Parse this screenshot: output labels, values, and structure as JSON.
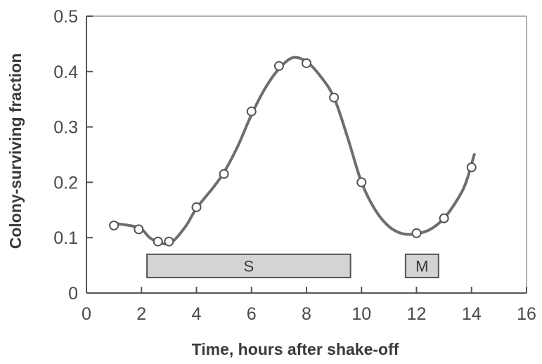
{
  "chart_data": {
    "type": "scatter",
    "title": "",
    "xlabel": "Time, hours after shake-off",
    "ylabel": "Colony-surviving fraction",
    "xlim": [
      0,
      16
    ],
    "ylim": [
      0,
      0.5
    ],
    "xticks": [
      0,
      2,
      4,
      6,
      8,
      10,
      12,
      14,
      16
    ],
    "yticks": [
      0,
      0.1,
      0.2,
      0.3,
      0.4,
      0.5
    ],
    "xtick_labels": [
      "0",
      "2",
      "4",
      "6",
      "8",
      "10",
      "12",
      "14",
      "16"
    ],
    "ytick_labels": [
      "0",
      "0.1",
      "0.2",
      "0.3",
      "0.4",
      "0.5"
    ],
    "grid": false,
    "points": [
      {
        "x": 1.0,
        "y": 0.122
      },
      {
        "x": 1.9,
        "y": 0.115
      },
      {
        "x": 2.6,
        "y": 0.093
      },
      {
        "x": 3.0,
        "y": 0.093
      },
      {
        "x": 4.0,
        "y": 0.155
      },
      {
        "x": 5.0,
        "y": 0.215
      },
      {
        "x": 6.0,
        "y": 0.328
      },
      {
        "x": 7.0,
        "y": 0.41
      },
      {
        "x": 8.0,
        "y": 0.415
      },
      {
        "x": 9.0,
        "y": 0.353
      },
      {
        "x": 10.0,
        "y": 0.2
      },
      {
        "x": 12.0,
        "y": 0.108
      },
      {
        "x": 13.0,
        "y": 0.135
      },
      {
        "x": 14.0,
        "y": 0.227
      }
    ],
    "fit_curve": [
      [
        1.0,
        0.126
      ],
      [
        1.9,
        0.118
      ],
      [
        2.3,
        0.1
      ],
      [
        2.7,
        0.09
      ],
      [
        3.1,
        0.092
      ],
      [
        3.6,
        0.12
      ],
      [
        4.0,
        0.153
      ],
      [
        4.6,
        0.19
      ],
      [
        5.0,
        0.218
      ],
      [
        5.5,
        0.265
      ],
      [
        6.0,
        0.322
      ],
      [
        6.5,
        0.37
      ],
      [
        7.0,
        0.405
      ],
      [
        7.5,
        0.425
      ],
      [
        8.0,
        0.418
      ],
      [
        8.5,
        0.392
      ],
      [
        9.0,
        0.353
      ],
      [
        9.5,
        0.28
      ],
      [
        10.0,
        0.2
      ],
      [
        10.5,
        0.15
      ],
      [
        11.0,
        0.12
      ],
      [
        11.5,
        0.107
      ],
      [
        12.0,
        0.107
      ],
      [
        12.5,
        0.115
      ],
      [
        13.0,
        0.135
      ],
      [
        13.5,
        0.17
      ],
      [
        13.8,
        0.2
      ],
      [
        14.1,
        0.25
      ]
    ],
    "phase_bars": [
      {
        "label": "S",
        "x_start": 2.2,
        "x_end": 9.6,
        "y_bottom": 0.028,
        "y_top": 0.07
      },
      {
        "label": "M",
        "x_start": 11.6,
        "x_end": 12.8,
        "y_bottom": 0.028,
        "y_top": 0.07
      }
    ],
    "colors": {
      "curve": "#6e6e6e",
      "marker_fill": "#ffffff",
      "marker_stroke": "#555555",
      "bar_fill": "#d4d4d4",
      "bar_stroke": "#555555",
      "frame": "#b0b0b0",
      "axis": "#555555"
    }
  }
}
